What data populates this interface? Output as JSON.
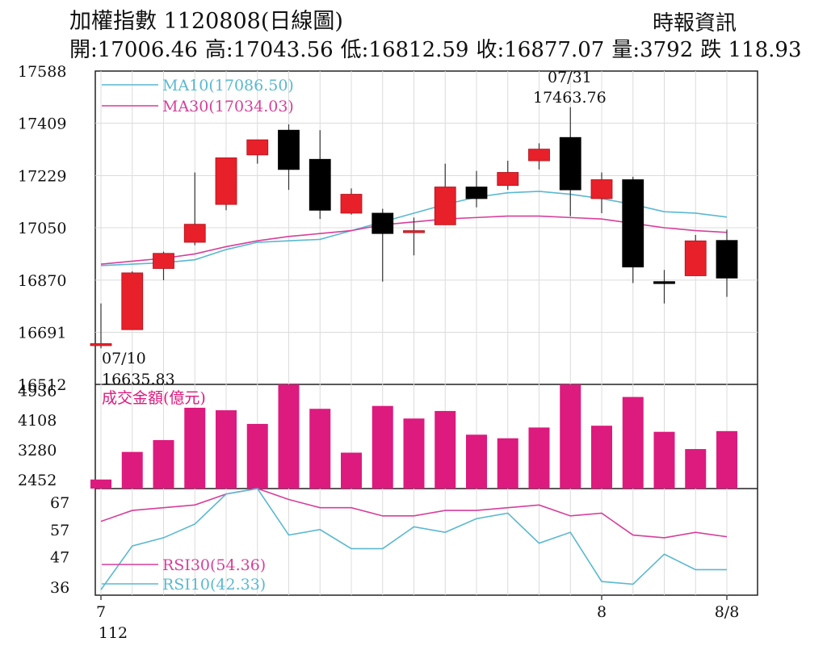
{
  "header": {
    "title": "加權指數 1120808(日線圖)",
    "source": "時報資訊",
    "stats": [
      "開:17006.46",
      "高:17043.56",
      "低:16812.59",
      "收:16877.07",
      "量:3792",
      "跌 118.93"
    ]
  },
  "colors": {
    "up": "#e8202a",
    "down": "#000000",
    "ma10": "#5ab8d0",
    "ma30": "#d63f9a",
    "volume": "#dd1a7e",
    "rsi30": "#d63f9a",
    "rsi10": "#5ab8d0",
    "grid": "#dcdcdc"
  },
  "chart_data": [
    {
      "type": "candlestick",
      "title": "",
      "ylim": [
        16512,
        17588
      ],
      "y_ticks": [
        "17588",
        "17409",
        "17229",
        "17050",
        "16870",
        "16691",
        "16512"
      ],
      "x_ticks": [
        {
          "index": 0,
          "label": "7"
        },
        {
          "index": 16,
          "label": "8"
        },
        {
          "index": 20,
          "label": "8/8"
        }
      ],
      "x_sublabel": "112",
      "candles": [
        {
          "open": 16650,
          "high": 16790,
          "low": 16636,
          "close": 16652
        },
        {
          "open": 16700,
          "high": 16900,
          "low": 16700,
          "close": 16895
        },
        {
          "open": 16910,
          "high": 16968,
          "low": 16870,
          "close": 16962
        },
        {
          "open": 17000,
          "high": 17240,
          "low": 16990,
          "close": 17062
        },
        {
          "open": 17130,
          "high": 17290,
          "low": 17110,
          "close": 17290
        },
        {
          "open": 17300,
          "high": 17350,
          "low": 17270,
          "close": 17352
        },
        {
          "open": 17385,
          "high": 17405,
          "low": 17180,
          "close": 17250
        },
        {
          "open": 17285,
          "high": 17385,
          "low": 17080,
          "close": 17110
        },
        {
          "open": 17100,
          "high": 17185,
          "low": 17095,
          "close": 17165
        },
        {
          "open": 17100,
          "high": 17115,
          "low": 16865,
          "close": 17030
        },
        {
          "open": 17040,
          "high": 17085,
          "low": 16955,
          "close": 17040
        },
        {
          "open": 17060,
          "high": 17270,
          "low": 17060,
          "close": 17190
        },
        {
          "open": 17190,
          "high": 17245,
          "low": 17120,
          "close": 17150
        },
        {
          "open": 17195,
          "high": 17280,
          "low": 17180,
          "close": 17240
        },
        {
          "open": 17280,
          "high": 17340,
          "low": 17250,
          "close": 17320
        },
        {
          "open": 17360,
          "high": 17464,
          "low": 17090,
          "close": 17180
        },
        {
          "open": 17150,
          "high": 17240,
          "low": 17100,
          "close": 17215
        },
        {
          "open": 17215,
          "high": 17225,
          "low": 16860,
          "close": 16915
        },
        {
          "open": 16865,
          "high": 16905,
          "low": 16790,
          "close": 16860
        },
        {
          "open": 16885,
          "high": 17025,
          "low": 16885,
          "close": 17005
        },
        {
          "open": 17006.46,
          "high": 17043.56,
          "low": 16812.59,
          "close": 16877.07
        }
      ],
      "series": [
        {
          "name": "MA10(17086.50)",
          "values": [
            16920,
            16925,
            16930,
            16940,
            16975,
            17000,
            17005,
            17010,
            17040,
            17070,
            17100,
            17130,
            17155,
            17170,
            17175,
            17165,
            17150,
            17130,
            17105,
            17100,
            17086.5
          ]
        },
        {
          "name": "MA30(17034.03)",
          "values": [
            16925,
            16935,
            16945,
            16960,
            16985,
            17005,
            17020,
            17030,
            17040,
            17060,
            17070,
            17080,
            17085,
            17090,
            17090,
            17085,
            17080,
            17065,
            17050,
            17040,
            17034.03
          ]
        }
      ],
      "annotations": [
        {
          "index": 0,
          "date": "07/10",
          "value": "16635.83"
        },
        {
          "index": 15,
          "date": "07/31",
          "value": "17463.76"
        }
      ]
    },
    {
      "type": "bar",
      "title": "成交金額(億元)",
      "ylim": [
        2200,
        5100
      ],
      "y_ticks": [
        "4936",
        "4108",
        "3280",
        "2452"
      ],
      "values": [
        2452,
        3220,
        3550,
        4450,
        4380,
        4000,
        5100,
        4420,
        3200,
        4500,
        4150,
        4360,
        3700,
        3600,
        3900,
        5100,
        3950,
        4750,
        3780,
        3300,
        3800
      ]
    },
    {
      "type": "line",
      "title": "",
      "ylim": [
        33,
        72
      ],
      "y_ticks": [
        "67",
        "57",
        "47",
        "36"
      ],
      "series": [
        {
          "name": "RSI30(54.36)",
          "values": [
            60,
            64,
            65,
            66,
            70,
            72,
            68,
            65,
            65,
            62,
            62,
            64,
            64,
            65,
            66,
            62,
            63,
            55,
            54,
            56,
            54.36
          ]
        },
        {
          "name": "RSI10(42.33)",
          "values": [
            35,
            51,
            54,
            59,
            70,
            72,
            55,
            57,
            50,
            50,
            58,
            56,
            61,
            63,
            52,
            56,
            38,
            37,
            48,
            42.33,
            42.33
          ]
        }
      ]
    }
  ]
}
